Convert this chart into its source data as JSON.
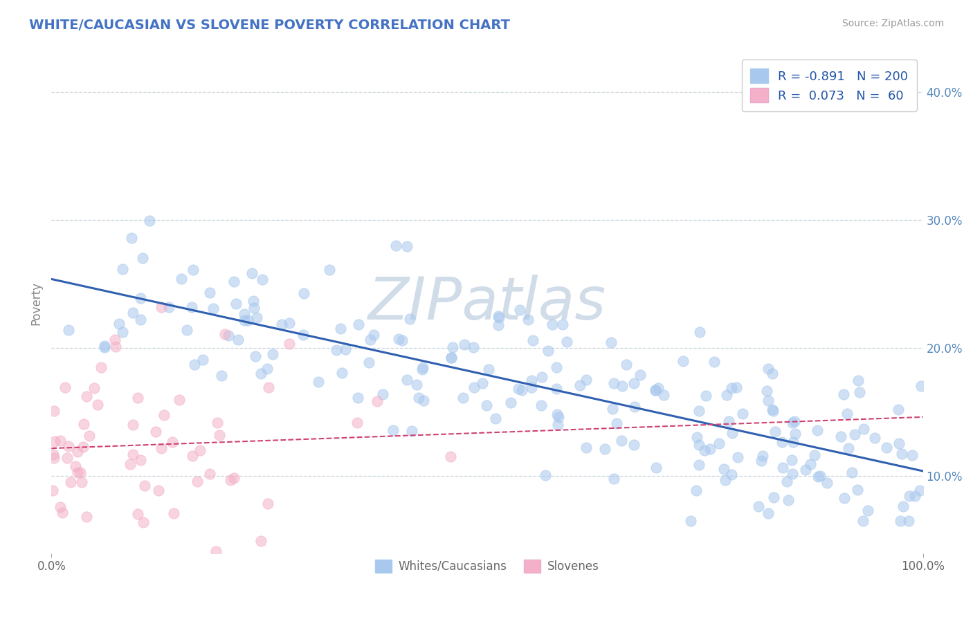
{
  "title": "WHITE/CAUCASIAN VS SLOVENE POVERTY CORRELATION CHART",
  "source": "Source: ZipAtlas.com",
  "ylabel": "Poverty",
  "blue_R": -0.891,
  "blue_N": 200,
  "pink_R": 0.073,
  "pink_N": 60,
  "blue_color": "#A8C8EE",
  "pink_color": "#F4B0C8",
  "blue_line_color": "#3060B0",
  "pink_line_color": "#D04070",
  "title_color": "#4472C4",
  "watermark_color": "#D0DCE8",
  "legend_label_blue": "Whites/Caucasians",
  "legend_label_pink": "Slovenes",
  "xlim": [
    0.0,
    1.0
  ],
  "ylim": [
    0.04,
    0.43
  ],
  "yticks": [
    0.1,
    0.2,
    0.3,
    0.4
  ],
  "yticklabels": [
    "10.0%",
    "20.0%",
    "30.0%",
    "40.0%"
  ],
  "seed": 12345,
  "background_color": "#FFFFFF"
}
